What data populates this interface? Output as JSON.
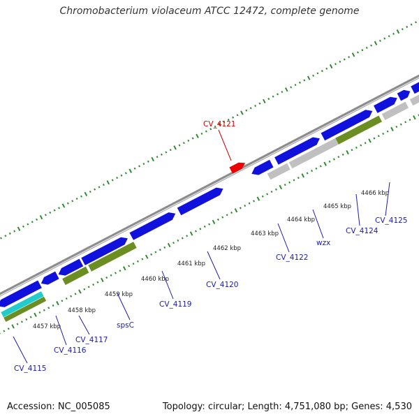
{
  "title": "Chromobacterium violaceum ATCC 12472, complete genome",
  "footer": {
    "accession": "Accession: NC_005085",
    "summary": "Topology: circular; Length: 4,751,080 bp; Genes: 4,530"
  },
  "colors": {
    "backbone": "#8c8c8c",
    "ticks": "#2e8b2e",
    "gene_forward": "#1111dd",
    "gene_reverse": "#1111dd",
    "highlight_gene": "#ee0000",
    "feature_green": "#6b8e23",
    "feature_gray": "#c0c0c0",
    "feature_cyan": "#22cccc",
    "label_blue": "#1a1aa8",
    "label_red": "#cc0000",
    "kbp_text": "#222222"
  },
  "kbp_labels": [
    "4457 kbp",
    "4458 kbp",
    "4459 kbp",
    "4460 kbp",
    "4461 kbp",
    "4462 kbp",
    "4463 kbp",
    "4464 kbp",
    "4465 kbp",
    "4466 kbp"
  ],
  "gene_labels": [
    {
      "text": "CV_4115",
      "style": "blue"
    },
    {
      "text": "CV_4116",
      "style": "blue"
    },
    {
      "text": "CV_4117",
      "style": "blue"
    },
    {
      "text": "spsC",
      "style": "blue"
    },
    {
      "text": "CV_4119",
      "style": "blue"
    },
    {
      "text": "CV_4120",
      "style": "blue"
    },
    {
      "text": "CV_4121",
      "style": "red"
    },
    {
      "text": "CV_4122",
      "style": "blue"
    },
    {
      "text": "wzx",
      "style": "blue"
    },
    {
      "text": "CV_4124",
      "style": "blue"
    },
    {
      "text": "CV_4125",
      "style": "blue"
    }
  ]
}
